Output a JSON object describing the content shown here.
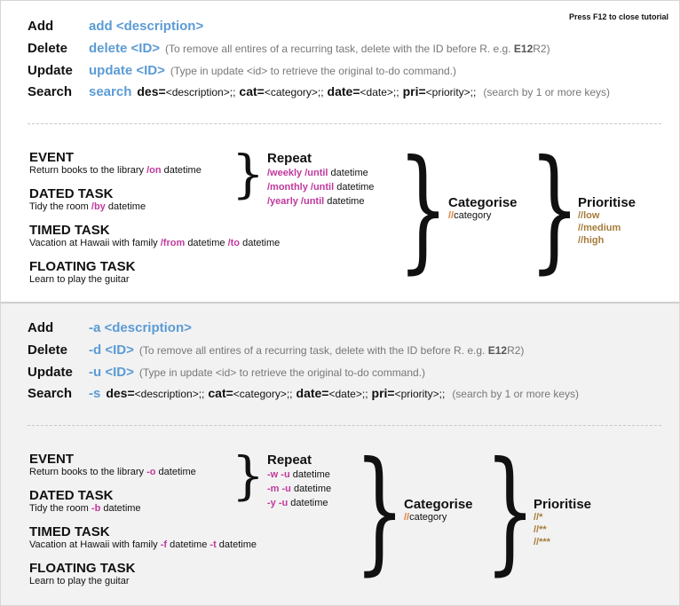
{
  "hint": "Press F12 to close tutorial",
  "full": {
    "commands": {
      "add": {
        "label": "Add",
        "keyword": "add <description>"
      },
      "delete": {
        "label": "Delete",
        "keyword": "delete <ID>",
        "note_pre": "(To remove all entires of a recurring task, delete with the ID before R. e.g. ",
        "note_bold": "E12",
        "note_post": "R2)"
      },
      "update": {
        "label": "Update",
        "keyword": "update <ID>",
        "note": "(Type in update <id> to retrieve the original to-do command.)"
      },
      "search": {
        "label": "Search",
        "keyword": "search",
        "k1": "des=",
        "p1": "<description>;;",
        "k2": "cat=",
        "p2": "<category>;;",
        "k3": "date=",
        "p3": "<date>;;",
        "k4": "pri=",
        "p4": "<priority>;;",
        "note": "(search by 1 or more keys)"
      }
    },
    "tasks": {
      "event": {
        "title": "EVENT",
        "desc": "Return books to the library",
        "flag": "/on",
        "tail": "datetime"
      },
      "dated": {
        "title": "DATED TASK",
        "desc": "Tidy the room",
        "flag": "/by",
        "tail": "datetime"
      },
      "timed": {
        "title": "TIMED TASK",
        "desc": "Vacation at Hawaii with family",
        "flag1": "/from",
        "mid": "datetime",
        "flag2": "/to",
        "tail": "datetime"
      },
      "floating": {
        "title": "FLOATING TASK",
        "desc": "Learn to play the guitar"
      }
    },
    "repeat": {
      "title": "Repeat",
      "rows": [
        {
          "flag": "/weekly /until",
          "tail": "datetime"
        },
        {
          "flag": "/monthly /until",
          "tail": "datetime"
        },
        {
          "flag": "/yearly /until",
          "tail": "datetime"
        }
      ]
    },
    "categorise": {
      "title": "Categorise",
      "prefix": "//",
      "text": "category"
    },
    "prioritise": {
      "title": "Prioritise",
      "items": [
        "//low",
        "//medium",
        "//high"
      ]
    }
  },
  "short": {
    "commands": {
      "add": {
        "label": "Add",
        "keyword": "-a <description>"
      },
      "delete": {
        "label": "Delete",
        "keyword": "-d <ID>",
        "note_pre": "(To remove all entires of a recurring task, delete with the ID before R. e.g. ",
        "note_bold": "E12",
        "note_post": "R2)"
      },
      "update": {
        "label": "Update",
        "keyword": "-u <ID>",
        "note": "(Type in update <id> to retrieve the original to-do command.)"
      },
      "search": {
        "label": "Search",
        "keyword": "-s",
        "k1": "des=",
        "p1": "<description>;;",
        "k2": "cat=",
        "p2": "<category>;;",
        "k3": "date=",
        "p3": "<date>;;",
        "k4": "pri=",
        "p4": "<priority>;;",
        "note": "(search by 1 or more keys)"
      }
    },
    "tasks": {
      "event": {
        "title": "EVENT",
        "desc": "Return books to the library",
        "flag": "-o",
        "tail": "datetime"
      },
      "dated": {
        "title": "DATED TASK",
        "desc": "Tidy the room",
        "flag": "-b",
        "tail": "datetime"
      },
      "timed": {
        "title": "TIMED TASK",
        "desc": "Vacation at Hawaii with family",
        "flag1": "-f",
        "mid": "datetime",
        "flag2": "-t",
        "tail": "datetime"
      },
      "floating": {
        "title": "FLOATING TASK",
        "desc": "Learn to play the guitar"
      }
    },
    "repeat": {
      "title": "Repeat",
      "rows": [
        {
          "flag": "-w -u",
          "tail": "datetime"
        },
        {
          "flag": "-m -u",
          "tail": "datetime"
        },
        {
          "flag": "-y -u",
          "tail": "datetime"
        }
      ]
    },
    "categorise": {
      "title": "Categorise",
      "prefix": "//",
      "text": "category"
    },
    "prioritise": {
      "title": "Prioritise",
      "items": [
        "//*",
        "//**",
        "//***"
      ]
    }
  },
  "colors": {
    "keyword": "#5b9bd5",
    "flag": "#c0399d",
    "category_prefix": "#e07b39",
    "priority": "#a67c3a"
  }
}
